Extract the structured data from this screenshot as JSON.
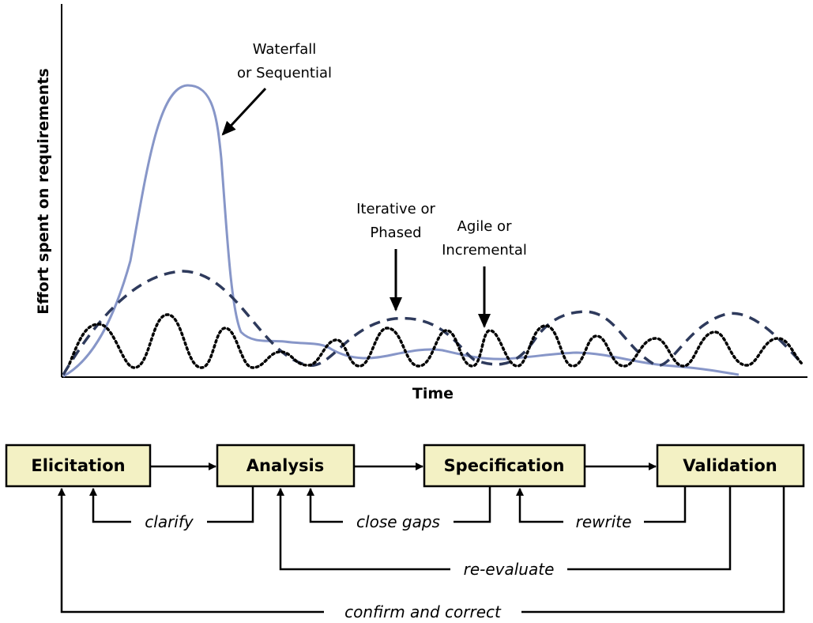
{
  "chart": {
    "ylabel": "Effort spent on requirements",
    "xlabel": "Time",
    "annotations": {
      "waterfall": [
        "Waterfall",
        "or Sequential"
      ],
      "iterative": [
        "Iterative or",
        "Phased"
      ],
      "agile": [
        "Agile or",
        "Incremental"
      ]
    },
    "colors": {
      "waterfall": "#8796c8",
      "iterative": "#2e3a5c",
      "agile": "#000000"
    }
  },
  "process": {
    "steps": [
      "Elicitation",
      "Analysis",
      "Specification",
      "Validation"
    ],
    "feedback": {
      "clarify": "clarify",
      "close_gaps": "close gaps",
      "rewrite": "rewrite",
      "re_evaluate": "re-evaluate",
      "confirm": "confirm and correct"
    }
  }
}
